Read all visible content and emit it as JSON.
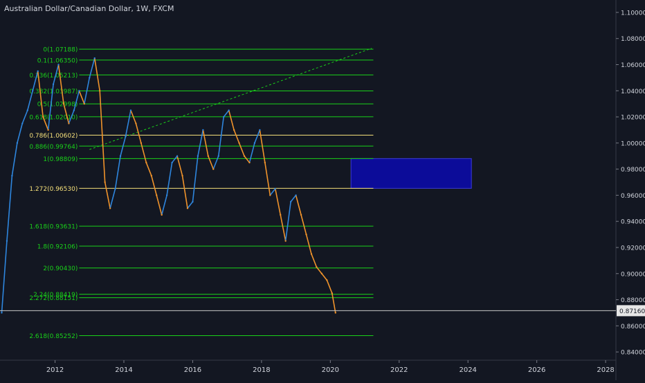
{
  "colors": {
    "background": "#131722",
    "axis_text": "#d1d4dc",
    "fib_green": "#19d219",
    "fib_yellow": "#f5e07a",
    "candle_up": "#2e86de",
    "candle_down": "#f0932b",
    "zone_fill": "#0c0c99",
    "current_line": "#c8c8c8"
  },
  "chart_data": {
    "type": "line",
    "title": "Australian Dollar/Canadian Dollar, 1W, FXCM",
    "xlabel": "",
    "ylabel": "",
    "x_ticks": [
      "2012",
      "2014",
      "2016",
      "2018",
      "2020",
      "2022",
      "2024",
      "2026",
      "2028"
    ],
    "x_tick_years": [
      2012,
      2014,
      2016,
      2018,
      2020,
      2022,
      2024,
      2026,
      2028
    ],
    "xlim": [
      2010.4,
      2028.3
    ],
    "y_ticks": [
      "0.84000",
      "0.86000",
      "0.88000",
      "0.90000",
      "0.92000",
      "0.94000",
      "0.96000",
      "0.98000",
      "1.00000",
      "1.02000",
      "1.04000",
      "1.06000",
      "1.08000",
      "1.10000"
    ],
    "y_tick_values": [
      0.84,
      0.86,
      0.88,
      0.9,
      0.92,
      0.94,
      0.96,
      0.98,
      1.0,
      1.02,
      1.04,
      1.06,
      1.08,
      1.1
    ],
    "ylim": [
      0.8337,
      1.1095
    ],
    "current_price": 0.8716,
    "current_price_label": "0.87160",
    "fib_levels": [
      {
        "label": "0(1.07188)",
        "value": 1.07188,
        "color": "green"
      },
      {
        "label": "0.1(1.06350)",
        "value": 1.0635,
        "color": "green"
      },
      {
        "label": "0.236(1.05213)",
        "value": 1.05213,
        "color": "green"
      },
      {
        "label": "0.382(1.03987)",
        "value": 1.03987,
        "color": "green"
      },
      {
        "label": "0.5(1.02998)",
        "value": 1.02998,
        "color": "green"
      },
      {
        "label": "0.618(1.02010)",
        "value": 1.0201,
        "color": "green"
      },
      {
        "label": "0.786(1.00602)",
        "value": 1.00602,
        "color": "yellow"
      },
      {
        "label": "0.886(0.99764)",
        "value": 0.99764,
        "color": "green"
      },
      {
        "label": "1(0.98809)",
        "value": 0.98809,
        "color": "green"
      },
      {
        "label": "1.272(0.96530)",
        "value": 0.9653,
        "color": "yellow"
      },
      {
        "label": "1.618(0.93631)",
        "value": 0.93631,
        "color": "green"
      },
      {
        "label": "1.8(0.92106)",
        "value": 0.92106,
        "color": "green"
      },
      {
        "label": "2(0.90430)",
        "value": 0.9043,
        "color": "green"
      },
      {
        "label": "2.24(0.88419)",
        "value": 0.88419,
        "color": "green"
      },
      {
        "label": "2.272(0.88151)",
        "value": 0.88151,
        "color": "green"
      },
      {
        "label": "2.618(0.85252)",
        "value": 0.85252,
        "color": "green"
      }
    ],
    "fib_x_range": [
      2012.7,
      2021.25
    ],
    "trend_line": {
      "from": [
        2013.0,
        0.995
      ],
      "to": [
        2021.2,
        1.0725
      ]
    },
    "zone": {
      "x": [
        2020.6,
        2024.1
      ],
      "y": [
        0.9653,
        0.98809
      ]
    },
    "series": [
      {
        "x": [
          2010.45,
          2010.6,
          2010.75,
          2010.9,
          2011.05,
          2011.2,
          2011.35,
          2011.5,
          2011.65,
          2011.8,
          2011.95,
          2012.1,
          2012.25,
          2012.4,
          2012.55,
          2012.7,
          2012.85,
          2013.0,
          2013.15,
          2013.3,
          2013.45,
          2013.6,
          2013.75,
          2013.9,
          2014.05,
          2014.2,
          2014.35,
          2014.5,
          2014.65,
          2014.8,
          2014.95,
          2015.1,
          2015.25,
          2015.4,
          2015.55,
          2015.7,
          2015.85,
          2016.0,
          2016.15,
          2016.3,
          2016.45,
          2016.6,
          2016.75,
          2016.9,
          2017.05,
          2017.2,
          2017.35,
          2017.5,
          2017.65,
          2017.8,
          2017.95,
          2018.1,
          2018.25,
          2018.4,
          2018.55,
          2018.7,
          2018.85,
          2019.0,
          2019.15,
          2019.3,
          2019.45,
          2019.6,
          2019.75,
          2019.9,
          2020.05,
          2020.15
        ],
        "values": [
          0.87,
          0.925,
          0.975,
          1.0,
          1.015,
          1.025,
          1.04,
          1.055,
          1.02,
          1.01,
          1.045,
          1.06,
          1.03,
          1.015,
          1.025,
          1.04,
          1.03,
          1.05,
          1.065,
          1.04,
          0.97,
          0.95,
          0.965,
          0.99,
          1.005,
          1.025,
          1.015,
          1.0,
          0.985,
          0.975,
          0.96,
          0.945,
          0.96,
          0.985,
          0.99,
          0.975,
          0.95,
          0.955,
          0.99,
          1.01,
          0.99,
          0.98,
          0.99,
          1.02,
          1.025,
          1.01,
          1.0,
          0.99,
          0.985,
          1.0,
          1.01,
          0.985,
          0.96,
          0.965,
          0.945,
          0.925,
          0.955,
          0.96,
          0.945,
          0.93,
          0.915,
          0.905,
          0.9,
          0.895,
          0.885,
          0.87
        ]
      }
    ],
    "grid": false,
    "legend": "none"
  }
}
